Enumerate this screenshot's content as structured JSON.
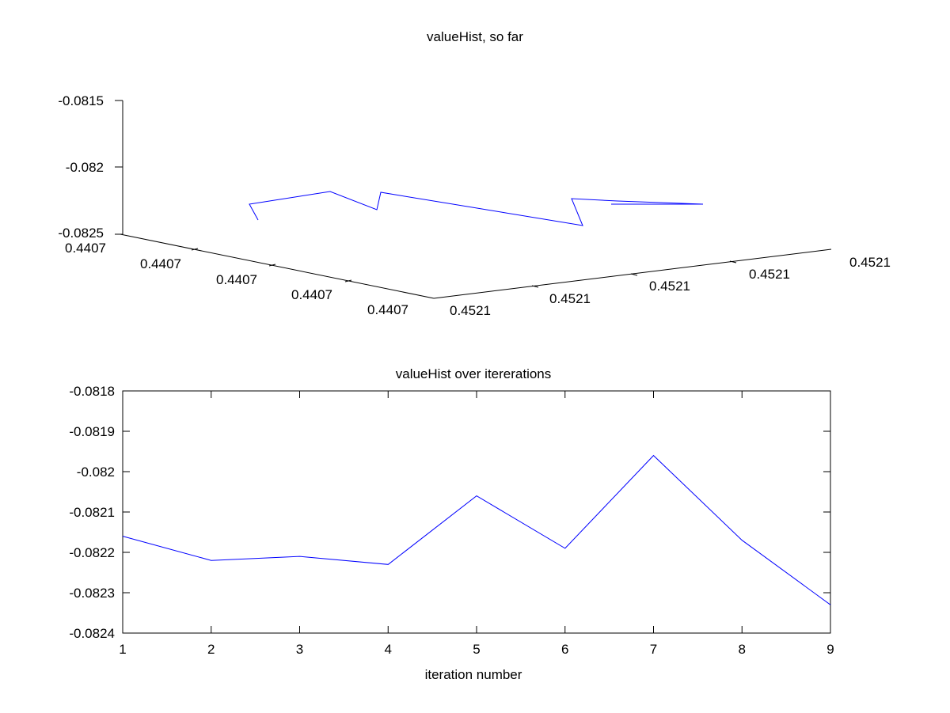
{
  "figure": {
    "background": "#ffffff",
    "line_color": "#0000ff",
    "axis_color": "#000000"
  },
  "chart_data": [
    {
      "type": "line3d",
      "title": "valueHist, so far",
      "zticks": [
        "-0.0815",
        "-0.082",
        "-0.0825"
      ],
      "xticks": [
        "0.4407",
        "0.4407",
        "0.4407",
        "0.4407",
        "0.4407"
      ],
      "yticks": [
        "0.4521",
        "0.4521",
        "0.4521",
        "0.4521",
        "0.4521",
        "0.4521"
      ],
      "grid": false
    },
    {
      "type": "line",
      "title": "valueHist over itererations",
      "xlabel": "iteration number",
      "ylabel": "",
      "x": [
        1,
        2,
        3,
        4,
        5,
        6,
        7,
        8,
        9
      ],
      "y": [
        -0.08216,
        -0.08222,
        -0.08221,
        -0.08223,
        -0.08206,
        -0.08219,
        -0.08196,
        -0.08217,
        -0.08233
      ],
      "xlim": [
        1,
        9
      ],
      "ylim": [
        -0.0824,
        -0.0818
      ],
      "xticks": [
        "1",
        "2",
        "3",
        "4",
        "5",
        "6",
        "7",
        "8",
        "9"
      ],
      "yticks": [
        "-0.0818",
        "-0.0819",
        "-0.082",
        "-0.0821",
        "-0.0822",
        "-0.0823",
        "-0.0824"
      ],
      "grid": false
    }
  ]
}
